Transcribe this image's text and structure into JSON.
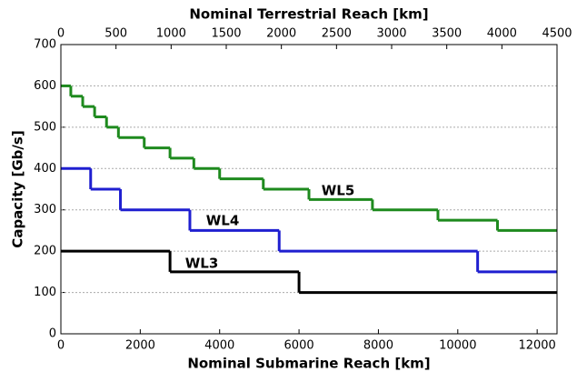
{
  "chart_data": {
    "type": "step",
    "xlabel": "Nominal Submarine Reach [km]",
    "x2label": "Nominal Terrestrial Reach [km]",
    "ylabel": "Capacity [Gb/s]",
    "xlim": [
      0,
      12500
    ],
    "xticks": [
      0,
      2000,
      4000,
      6000,
      8000,
      10000,
      12000
    ],
    "x2lim": [
      0,
      4500
    ],
    "x2ticks": [
      0,
      500,
      1000,
      1500,
      2000,
      2500,
      3000,
      3500,
      4000,
      4500
    ],
    "ylim": [
      0,
      700
    ],
    "yticks": [
      0,
      100,
      200,
      300,
      400,
      500,
      600,
      700
    ],
    "grid": true,
    "series": [
      {
        "name": "WL5",
        "color": "#1e8a1e",
        "x": [
          0,
          250,
          550,
          850,
          1150,
          1450,
          2100,
          2750,
          3350,
          4000,
          5100,
          6250,
          7850,
          9500,
          11000
        ],
        "values": [
          600,
          575,
          550,
          525,
          500,
          475,
          450,
          425,
          400,
          375,
          350,
          325,
          300,
          275,
          250
        ]
      },
      {
        "name": "WL4",
        "color": "#1f1fd0",
        "x": [
          0,
          750,
          1500,
          3250,
          5500,
          10500
        ],
        "values": [
          400,
          350,
          300,
          250,
          200,
          150
        ]
      },
      {
        "name": "WL3",
        "color": "#000000",
        "x": [
          0,
          2750,
          6000
        ],
        "values": [
          200,
          150,
          100
        ]
      }
    ]
  }
}
